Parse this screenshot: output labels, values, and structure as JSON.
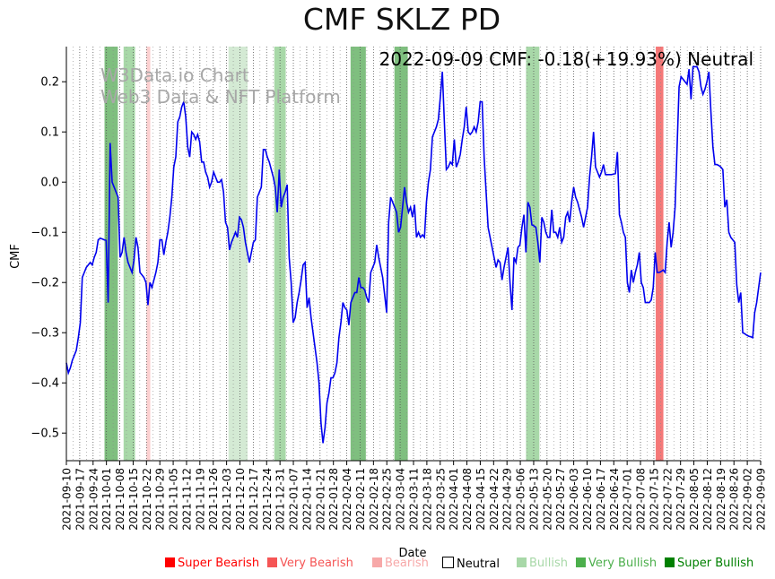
{
  "chart_data": {
    "type": "line",
    "title": "CMF SKLZ PD",
    "xlabel": "Date",
    "ylabel": "CMF",
    "watermark": [
      "W3Data.io Chart",
      "Web3 Data & NFT Platform"
    ],
    "annotation": "2022-09-09 CMF: -0.18(+19.93%) Neutral",
    "x_range": [
      "2021-09-10",
      "2022-09-09"
    ],
    "ylim": [
      -0.555,
      0.27
    ],
    "yticks": [
      0.2,
      0.1,
      0.0,
      -0.1,
      -0.2,
      -0.3,
      -0.4,
      -0.5
    ],
    "ytick_labels": [
      "0.2",
      "0.1",
      "0.0",
      "−0.1",
      "−0.2",
      "−0.3",
      "−0.4",
      "−0.5"
    ],
    "xtick_labels": [
      "2021-09-10",
      "2021-09-17",
      "2021-09-24",
      "2021-10-01",
      "2021-10-08",
      "2021-10-15",
      "2021-10-22",
      "2021-10-29",
      "2021-11-05",
      "2021-11-12",
      "2021-11-19",
      "2021-11-26",
      "2021-12-03",
      "2021-12-10",
      "2021-12-17",
      "2021-12-24",
      "2021-12-31",
      "2022-01-07",
      "2022-01-14",
      "2022-01-21",
      "2022-01-28",
      "2022-02-04",
      "2022-02-11",
      "2022-02-18",
      "2022-02-25",
      "2022-03-04",
      "2022-03-11",
      "2022-03-18",
      "2022-03-25",
      "2022-04-01",
      "2022-04-08",
      "2022-04-15",
      "2022-04-22",
      "2022-04-29",
      "2022-05-06",
      "2022-05-13",
      "2022-05-20",
      "2022-05-27",
      "2022-06-03",
      "2022-06-10",
      "2022-06-17",
      "2022-06-24",
      "2022-07-01",
      "2022-07-08",
      "2022-07-15",
      "2022-07-22",
      "2022-07-29",
      "2022-08-05",
      "2022-08-12",
      "2022-08-19",
      "2022-08-26",
      "2022-09-02",
      "2022-09-09"
    ],
    "series": [
      {
        "name": "CMF",
        "color": "#0000ee",
        "values": [
          -0.36,
          -0.38,
          -0.37,
          -0.355,
          -0.345,
          -0.335,
          -0.31,
          -0.28,
          -0.19,
          -0.18,
          -0.17,
          -0.165,
          -0.16,
          -0.165,
          -0.15,
          -0.14,
          -0.115,
          -0.112,
          -0.113,
          -0.115,
          -0.116,
          -0.24,
          0.078,
          0.0,
          -0.01,
          -0.02,
          -0.03,
          -0.15,
          -0.14,
          -0.11,
          -0.14,
          -0.16,
          -0.17,
          -0.18,
          -0.155,
          -0.11,
          -0.13,
          -0.18,
          -0.185,
          -0.19,
          -0.2,
          -0.245,
          -0.2,
          -0.21,
          -0.195,
          -0.18,
          -0.16,
          -0.115,
          -0.115,
          -0.145,
          -0.12,
          -0.1,
          -0.07,
          -0.03,
          0.03,
          0.05,
          0.12,
          0.13,
          0.15,
          0.16,
          0.13,
          0.07,
          0.05,
          0.1,
          0.095,
          0.085,
          0.095,
          0.08,
          0.04,
          0.04,
          0.02,
          0.01,
          -0.01,
          0.0,
          0.02,
          0.01,
          0.0,
          0.0,
          0.005,
          -0.02,
          -0.08,
          -0.09,
          -0.135,
          -0.12,
          -0.11,
          -0.1,
          -0.11,
          -0.07,
          -0.075,
          -0.09,
          -0.12,
          -0.14,
          -0.16,
          -0.14,
          -0.12,
          -0.115,
          -0.03,
          -0.02,
          -0.01,
          0.065,
          0.065,
          0.05,
          0.04,
          0.025,
          0.01,
          -0.01,
          -0.06,
          0.025,
          -0.05,
          -0.03,
          -0.02,
          -0.005,
          -0.15,
          -0.2,
          -0.28,
          -0.27,
          -0.24,
          -0.22,
          -0.195,
          -0.165,
          -0.16,
          -0.25,
          -0.23,
          -0.27,
          -0.3,
          -0.33,
          -0.36,
          -0.4,
          -0.48,
          -0.52,
          -0.49,
          -0.44,
          -0.42,
          -0.39,
          -0.39,
          -0.38,
          -0.36,
          -0.31,
          -0.28,
          -0.24,
          -0.25,
          -0.255,
          -0.285,
          -0.24,
          -0.23,
          -0.22,
          -0.22,
          -0.19,
          -0.21,
          -0.21,
          -0.215,
          -0.23,
          -0.24,
          -0.18,
          -0.17,
          -0.16,
          -0.125,
          -0.15,
          -0.17,
          -0.19,
          -0.225,
          -0.26,
          -0.08,
          -0.03,
          -0.04,
          -0.05,
          -0.06,
          -0.1,
          -0.09,
          -0.05,
          -0.01,
          -0.04,
          -0.06,
          -0.05,
          -0.07,
          -0.045,
          -0.11,
          -0.1,
          -0.11,
          -0.105,
          -0.11,
          -0.04,
          0.0,
          0.025,
          0.09,
          0.1,
          0.11,
          0.125,
          0.17,
          0.22,
          0.12,
          0.025,
          0.03,
          0.04,
          0.035,
          0.085,
          0.03,
          0.04,
          0.055,
          0.085,
          0.11,
          0.15,
          0.1,
          0.095,
          0.1,
          0.11,
          0.1,
          0.12,
          0.16,
          0.16,
          0.05,
          -0.02,
          -0.09,
          -0.11,
          -0.13,
          -0.15,
          -0.17,
          -0.155,
          -0.16,
          -0.195,
          -0.17,
          -0.15,
          -0.13,
          -0.2,
          -0.255,
          -0.15,
          -0.16,
          -0.13,
          -0.125,
          -0.09,
          -0.065,
          -0.14,
          -0.04,
          -0.05,
          -0.085,
          -0.087,
          -0.09,
          -0.12,
          -0.16,
          -0.07,
          -0.08,
          -0.1,
          -0.11,
          -0.11,
          -0.055,
          -0.1,
          -0.1,
          -0.11,
          -0.09,
          -0.12,
          -0.11,
          -0.07,
          -0.06,
          -0.08,
          -0.04,
          -0.01,
          -0.03,
          -0.04,
          -0.055,
          -0.07,
          -0.09,
          -0.07,
          -0.05,
          0.01,
          0.05,
          0.1,
          0.03,
          0.02,
          0.01,
          0.02,
          0.035,
          0.015,
          0.015,
          0.015,
          0.015,
          0.016,
          0.017,
          0.06,
          -0.065,
          -0.08,
          -0.1,
          -0.11,
          -0.2,
          -0.22,
          -0.175,
          -0.2,
          -0.18,
          -0.165,
          -0.14,
          -0.2,
          -0.21,
          -0.24,
          -0.24,
          -0.24,
          -0.235,
          -0.21,
          -0.14,
          -0.18,
          -0.18,
          -0.178,
          -0.175,
          -0.18,
          -0.12,
          -0.08,
          -0.13,
          -0.1,
          -0.05,
          0.07,
          0.19,
          0.21,
          0.205,
          0.2,
          0.195,
          0.225,
          0.165,
          0.23,
          0.23,
          0.23,
          0.22,
          0.19,
          0.175,
          0.185,
          0.2,
          0.22,
          0.14,
          0.07,
          0.035,
          0.035,
          0.033,
          0.03,
          0.025,
          -0.05,
          -0.035,
          -0.1,
          -0.11,
          -0.115,
          -0.12,
          -0.205,
          -0.24,
          -0.22,
          -0.3,
          -0.302,
          -0.305,
          -0.307,
          -0.308,
          -0.31,
          -0.26,
          -0.24,
          -0.21,
          -0.18
        ]
      }
    ],
    "bands": [
      {
        "start": "2021-09-30",
        "end": "2021-10-07",
        "sentiment": "Very Bullish"
      },
      {
        "start": "2021-10-10",
        "end": "2021-10-16",
        "sentiment": "Bullish"
      },
      {
        "start": "2021-10-22",
        "end": "2021-10-24",
        "sentiment": "Bearish"
      },
      {
        "start": "2021-12-04",
        "end": "2021-12-14",
        "sentiment": "Neutral-Bullish"
      },
      {
        "start": "2021-12-28",
        "end": "2022-01-03",
        "sentiment": "Bullish"
      },
      {
        "start": "2022-02-06",
        "end": "2022-02-14",
        "sentiment": "Very Bullish"
      },
      {
        "start": "2022-03-01",
        "end": "2022-03-08",
        "sentiment": "Very Bullish"
      },
      {
        "start": "2022-05-09",
        "end": "2022-05-16",
        "sentiment": "Bullish"
      },
      {
        "start": "2022-07-16",
        "end": "2022-07-20",
        "sentiment": "Very Bearish"
      }
    ],
    "legend": [
      {
        "label": "Super Bearish",
        "color": "#ff0000",
        "text_color": "#ff0000"
      },
      {
        "label": "Very Bearish",
        "color": "#f55555",
        "text_color": "#f55555"
      },
      {
        "label": "Bearish",
        "color": "#f7a8a8",
        "text_color": "#f7a8a8"
      },
      {
        "label": "Neutral",
        "color": "#ffffff",
        "text_color": "#000000"
      },
      {
        "label": "Bullish",
        "color": "#a8d8a8",
        "text_color": "#a8d8a8"
      },
      {
        "label": "Very Bullish",
        "color": "#4caf4c",
        "text_color": "#4caf4c"
      },
      {
        "label": "Super Bullish",
        "color": "#008000",
        "text_color": "#008000"
      }
    ],
    "band_colors": {
      "Very Bullish": "#7fbf7f",
      "Bullish": "#a8d8a8",
      "Neutral-Bullish": "#d4ead4",
      "Bearish": "#fcd0d0",
      "Very Bearish": "#f57878"
    },
    "line_color": "#0000ee"
  }
}
